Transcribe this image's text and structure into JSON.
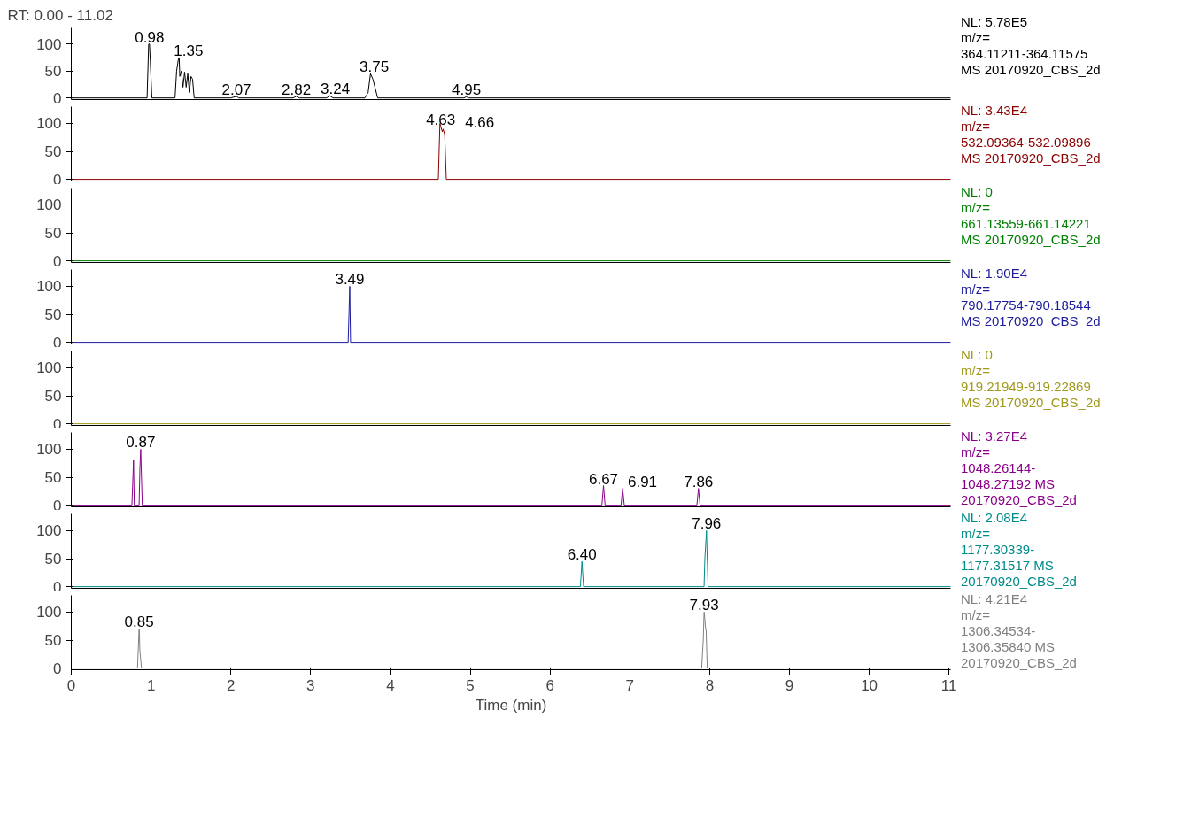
{
  "chart_data": [
    {
      "type": "line",
      "title": "RT: 0.00 - 11.02",
      "xlim": [
        0,
        11.02
      ],
      "ylim": [
        -3,
        130
      ],
      "yticks": [
        0,
        50,
        100
      ],
      "tick_labels": "y",
      "grid": false,
      "marker": "none",
      "line_style": "solid",
      "series": [
        {
          "color": "#000000",
          "x": [
            0,
            0.95,
            0.97,
            0.98,
            0.99,
            1.0,
            1.01,
            1.3,
            1.32,
            1.34,
            1.35,
            1.352,
            1.36,
            1.38,
            1.4,
            1.42,
            1.44,
            1.46,
            1.48,
            1.5,
            1.52,
            1.54,
            2.0,
            2.07,
            2.1,
            2.78,
            2.82,
            2.86,
            3.2,
            3.24,
            3.28,
            3.68,
            3.72,
            3.75,
            3.78,
            3.84,
            4.92,
            4.95,
            4.98,
            11.02
          ],
          "values": [
            0,
            0,
            100,
            100,
            70,
            35,
            0,
            0,
            50,
            70,
            75,
            75,
            40,
            50,
            20,
            48,
            20,
            45,
            10,
            40,
            35,
            0,
            0,
            3,
            0,
            0,
            3,
            0,
            0,
            4,
            0,
            0,
            10,
            45,
            35,
            0,
            0,
            2,
            0,
            0
          ]
        }
      ],
      "annotations": [
        {
          "text": "0.98",
          "x": 0.98,
          "y": 100
        },
        {
          "text": "1.35",
          "x": 1.35,
          "y": 75
        },
        {
          "text": "2.07",
          "x": 2.07,
          "y": 3
        },
        {
          "text": "2.82",
          "x": 2.82,
          "y": 3
        },
        {
          "text": "3.24",
          "x": 3.24,
          "y": 4
        },
        {
          "text": "3.75",
          "x": 3.75,
          "y": 45
        },
        {
          "text": "4.95",
          "x": 4.95,
          "y": 2
        },
        "NL: 5.78E5",
        "m/z=",
        "364.11211-364.11575",
        "MS 20170920_CBS_2d"
      ]
    },
    {
      "type": "line",
      "xlim": [
        0,
        11.02
      ],
      "ylim": [
        -3,
        130
      ],
      "yticks": [
        0,
        50,
        100
      ],
      "tick_labels": "y",
      "grid": false,
      "marker": "none",
      "line_style": "solid",
      "series": [
        {
          "color": "#8b0000",
          "x": [
            0,
            4.6,
            4.62,
            4.63,
            4.65,
            4.66,
            4.68,
            4.7,
            11.02
          ],
          "values": [
            0,
            0,
            100,
            95,
            85,
            90,
            80,
            0,
            0
          ]
        }
      ],
      "annotations": [
        {
          "text": "4.63",
          "x": 4.63,
          "y": 95
        },
        {
          "text": "4.66",
          "x": 4.66,
          "y": 90
        },
        "NL: 3.43E4",
        "m/z=",
        "532.09364-532.09896",
        "MS 20170920_CBS_2d"
      ]
    },
    {
      "type": "line",
      "xlim": [
        0,
        11.02
      ],
      "ylim": [
        -3,
        130
      ],
      "yticks": [
        0,
        50,
        100
      ],
      "tick_labels": "y",
      "grid": false,
      "marker": "none",
      "line_style": "solid",
      "series": [
        {
          "color": "#008000",
          "x": [
            0,
            11.02
          ],
          "values": [
            0,
            0
          ]
        }
      ],
      "annotations": [
        "NL: 0",
        "m/z=",
        "661.13559-661.14221",
        "MS 20170920_CBS_2d"
      ]
    },
    {
      "type": "line",
      "xlim": [
        0,
        11.02
      ],
      "ylim": [
        -3,
        130
      ],
      "yticks": [
        0,
        50,
        100
      ],
      "tick_labels": "y",
      "grid": false,
      "marker": "none",
      "line_style": "solid",
      "series": [
        {
          "color": "#1c1c9c",
          "x": [
            0,
            3.47,
            3.48,
            3.49,
            3.5,
            11.02
          ],
          "values": [
            0,
            0,
            50,
            100,
            0,
            0
          ]
        }
      ],
      "annotations": [
        {
          "text": "3.49",
          "x": 3.49,
          "y": 100
        },
        "NL: 1.90E4",
        "m/z=",
        "790.17754-790.18544",
        "MS 20170920_CBS_2d"
      ]
    },
    {
      "type": "line",
      "xlim": [
        0,
        11.02
      ],
      "ylim": [
        -3,
        130
      ],
      "yticks": [
        0,
        50,
        100
      ],
      "tick_labels": "y",
      "grid": false,
      "marker": "none",
      "line_style": "solid",
      "series": [
        {
          "color": "#a09a1e",
          "x": [
            0,
            11.02
          ],
          "values": [
            0,
            0
          ]
        }
      ],
      "annotations": [
        "NL: 0",
        "m/z=",
        "919.21949-919.22869",
        "MS 20170920_CBS_2d"
      ]
    },
    {
      "type": "line",
      "xlim": [
        0,
        11.02
      ],
      "ylim": [
        -3,
        130
      ],
      "yticks": [
        0,
        50,
        100
      ],
      "tick_labels": "y",
      "grid": false,
      "marker": "none",
      "line_style": "solid",
      "series": [
        {
          "color": "#8b008b",
          "x": [
            0,
            0.76,
            0.77,
            0.78,
            0.79,
            0.85,
            0.86,
            0.87,
            0.88,
            0.89,
            6.65,
            6.67,
            6.69,
            6.89,
            6.91,
            6.93,
            7.84,
            7.86,
            7.88,
            11.02
          ],
          "values": [
            0,
            0,
            40,
            80,
            0,
            0,
            65,
            100,
            50,
            0,
            0,
            35,
            0,
            0,
            30,
            0,
            0,
            30,
            0,
            0
          ]
        }
      ],
      "annotations": [
        {
          "text": "0.87",
          "x": 0.87,
          "y": 100
        },
        {
          "text": "6.67",
          "x": 6.67,
          "y": 35
        },
        {
          "text": "6.91",
          "x": 6.91,
          "y": 30
        },
        {
          "text": "7.86",
          "x": 7.86,
          "y": 30
        },
        "NL: 3.27E4",
        "m/z=",
        "1048.26144-",
        "1048.27192  MS",
        "20170920_CBS_2d"
      ]
    },
    {
      "type": "line",
      "xlim": [
        0,
        11.02
      ],
      "ylim": [
        -3,
        130
      ],
      "yticks": [
        0,
        50,
        100
      ],
      "tick_labels": "y",
      "grid": false,
      "marker": "none",
      "line_style": "solid",
      "series": [
        {
          "color": "#008b8b",
          "x": [
            0,
            6.38,
            6.4,
            6.42,
            7.93,
            7.94,
            7.96,
            7.98,
            11.02
          ],
          "values": [
            0,
            0,
            45,
            0,
            0,
            50,
            100,
            0,
            0
          ]
        }
      ],
      "annotations": [
        {
          "text": "6.40",
          "x": 6.4,
          "y": 45
        },
        {
          "text": "7.96",
          "x": 7.96,
          "y": 100
        },
        "NL: 2.08E4",
        "m/z=",
        "1177.30339-",
        "1177.31517  MS",
        "20170920_CBS_2d"
      ]
    },
    {
      "type": "line",
      "xlim": [
        0,
        11.02
      ],
      "ylim": [
        -3,
        130
      ],
      "yticks": [
        0,
        50,
        100
      ],
      "xticks": [
        0,
        1,
        2,
        3,
        4,
        5,
        6,
        7,
        8,
        9,
        10,
        11
      ],
      "xlabel": "Time (min)",
      "grid": false,
      "marker": "none",
      "line_style": "solid",
      "series": [
        {
          "color": "#808080",
          "x": [
            0,
            0.83,
            0.85,
            0.852,
            0.86,
            0.88,
            7.9,
            7.92,
            7.93,
            7.932,
            7.95,
            7.955,
            7.97,
            11.02
          ],
          "values": [
            0,
            0,
            70,
            70,
            30,
            0,
            0,
            50,
            100,
            100,
            70,
            70,
            0,
            0
          ]
        }
      ],
      "annotations": [
        {
          "text": "0.85",
          "x": 0.85,
          "y": 70
        },
        {
          "text": "7.93",
          "x": 7.93,
          "y": 100
        },
        "NL: 4.21E4",
        "m/z=",
        "1306.34534-",
        "1306.35840  MS",
        "20170920_CBS_2d"
      ]
    }
  ]
}
